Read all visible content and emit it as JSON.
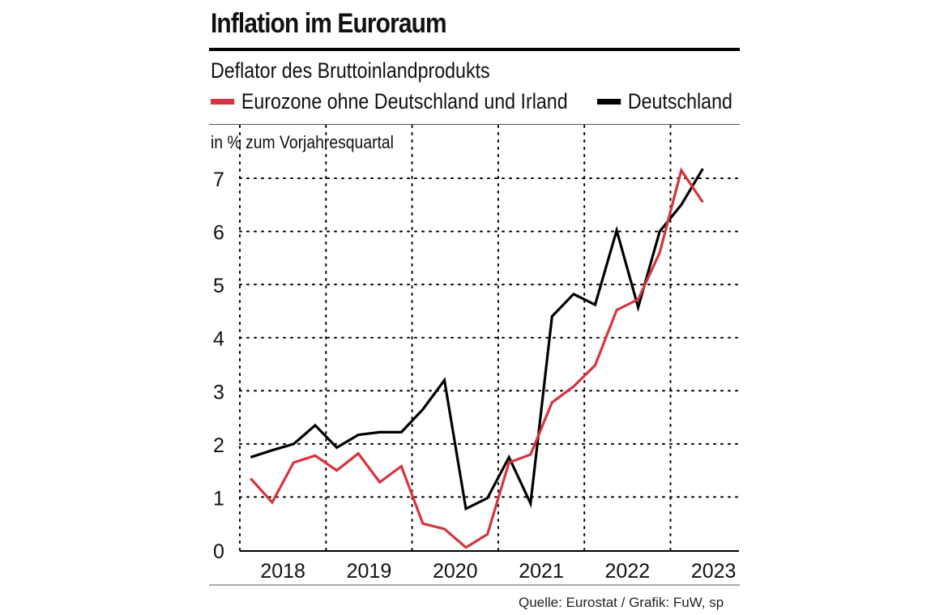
{
  "header": {
    "title": "Inflation im Euroraum",
    "subtitle": "Deflator des Bruttoinlandprodukts",
    "y_axis_label": "in % zum Vorjahresquartal"
  },
  "legend": {
    "items": [
      {
        "label": "Eurozone ohne Deutschland und Irland",
        "color": "#d6343f"
      },
      {
        "label": "Deutschland",
        "color": "#000000"
      }
    ]
  },
  "footer": {
    "source": "Quelle: Eurostat / Grafik: FuW, sp"
  },
  "chart_data": {
    "type": "line",
    "title": "Inflation im Euroraum",
    "subtitle": "Deflator des Bruttoinlandprodukts",
    "ylabel": "in % zum Vorjahresquartal",
    "xlabel": "",
    "ylim": [
      0,
      7.5
    ],
    "yticks": [
      "0",
      "1",
      "2",
      "3",
      "4",
      "5",
      "6",
      "7"
    ],
    "x_years": [
      "2018",
      "2019",
      "2020",
      "2021",
      "2022",
      "2023"
    ],
    "x_quarters": [
      "2018 Q1",
      "2018 Q2",
      "2018 Q3",
      "2018 Q4",
      "2019 Q1",
      "2019 Q2",
      "2019 Q3",
      "2019 Q4",
      "2020 Q1",
      "2020 Q2",
      "2020 Q3",
      "2020 Q4",
      "2021 Q1",
      "2021 Q2",
      "2021 Q3",
      "2021 Q4",
      "2022 Q1",
      "2022 Q2",
      "2022 Q3",
      "2022 Q4",
      "2023 Q1",
      "2023 Q2"
    ],
    "series": [
      {
        "name": "Eurozone ohne Deutschland und Irland",
        "color": "#d6343f",
        "values": [
          1.35,
          0.9,
          1.65,
          1.78,
          1.5,
          1.82,
          1.28,
          1.58,
          0.5,
          0.4,
          0.05,
          0.3,
          1.65,
          1.8,
          2.78,
          3.08,
          3.48,
          4.52,
          4.72,
          5.6,
          7.15,
          6.55
        ]
      },
      {
        "name": "Deutschland",
        "color": "#000000",
        "values": [
          1.75,
          1.88,
          2.0,
          2.35,
          1.93,
          2.17,
          2.22,
          2.22,
          2.65,
          3.2,
          0.78,
          0.98,
          1.75,
          0.88,
          4.4,
          4.82,
          4.62,
          6.02,
          4.57,
          6.0,
          6.5,
          7.18
        ]
      }
    ],
    "grid": true
  }
}
